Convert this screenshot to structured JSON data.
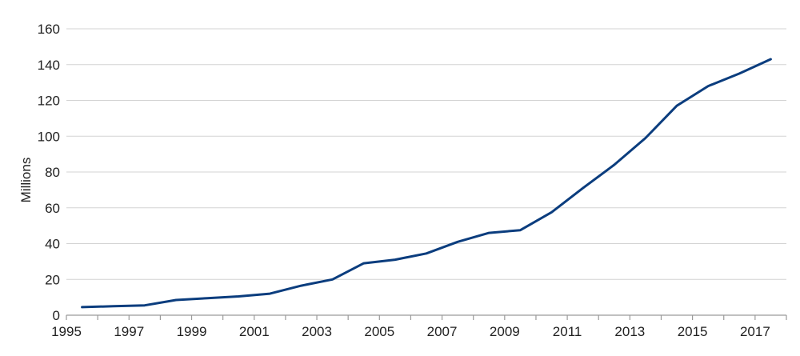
{
  "chart_data": {
    "type": "line",
    "title": "",
    "xlabel": "",
    "ylabel": "Millions",
    "xlim": [
      1995,
      2018
    ],
    "ylim": [
      0,
      160
    ],
    "y_ticks": [
      0,
      20,
      40,
      60,
      80,
      100,
      120,
      140,
      160
    ],
    "x_ticks": [
      1995,
      1997,
      1999,
      2001,
      2003,
      2005,
      2007,
      2009,
      2011,
      2013,
      2015,
      2017
    ],
    "y_tick_labels": [
      "0",
      "20",
      "40",
      "60",
      "80",
      "100",
      "120",
      "140",
      "160"
    ],
    "x_tick_labels": [
      "1995",
      "1997",
      "1999",
      "2001",
      "2003",
      "2005",
      "2007",
      "2009",
      "2011",
      "2013",
      "2015",
      "2017"
    ],
    "grid": "horizontal",
    "legend": "none",
    "line_color": "#0b3d7e",
    "series": [
      {
        "x": [
          1995.5,
          1996.5,
          1997.5,
          1998.5,
          1999.5,
          2000.5,
          2001.5,
          2002.5,
          2003.5,
          2004.5,
          2005.5,
          2006.5,
          2007.5,
          2008.5,
          2009.5,
          2010.5,
          2011.5,
          2012.5,
          2013.5,
          2014.5,
          2015.5,
          2016.5,
          2017.5
        ],
        "values": [
          4.5,
          5,
          5.5,
          8.5,
          9.5,
          10.5,
          12,
          16.5,
          20,
          29,
          31,
          34.5,
          41,
          46,
          47.5,
          57.5,
          71,
          84,
          99,
          117,
          128,
          135,
          143
        ]
      }
    ]
  }
}
